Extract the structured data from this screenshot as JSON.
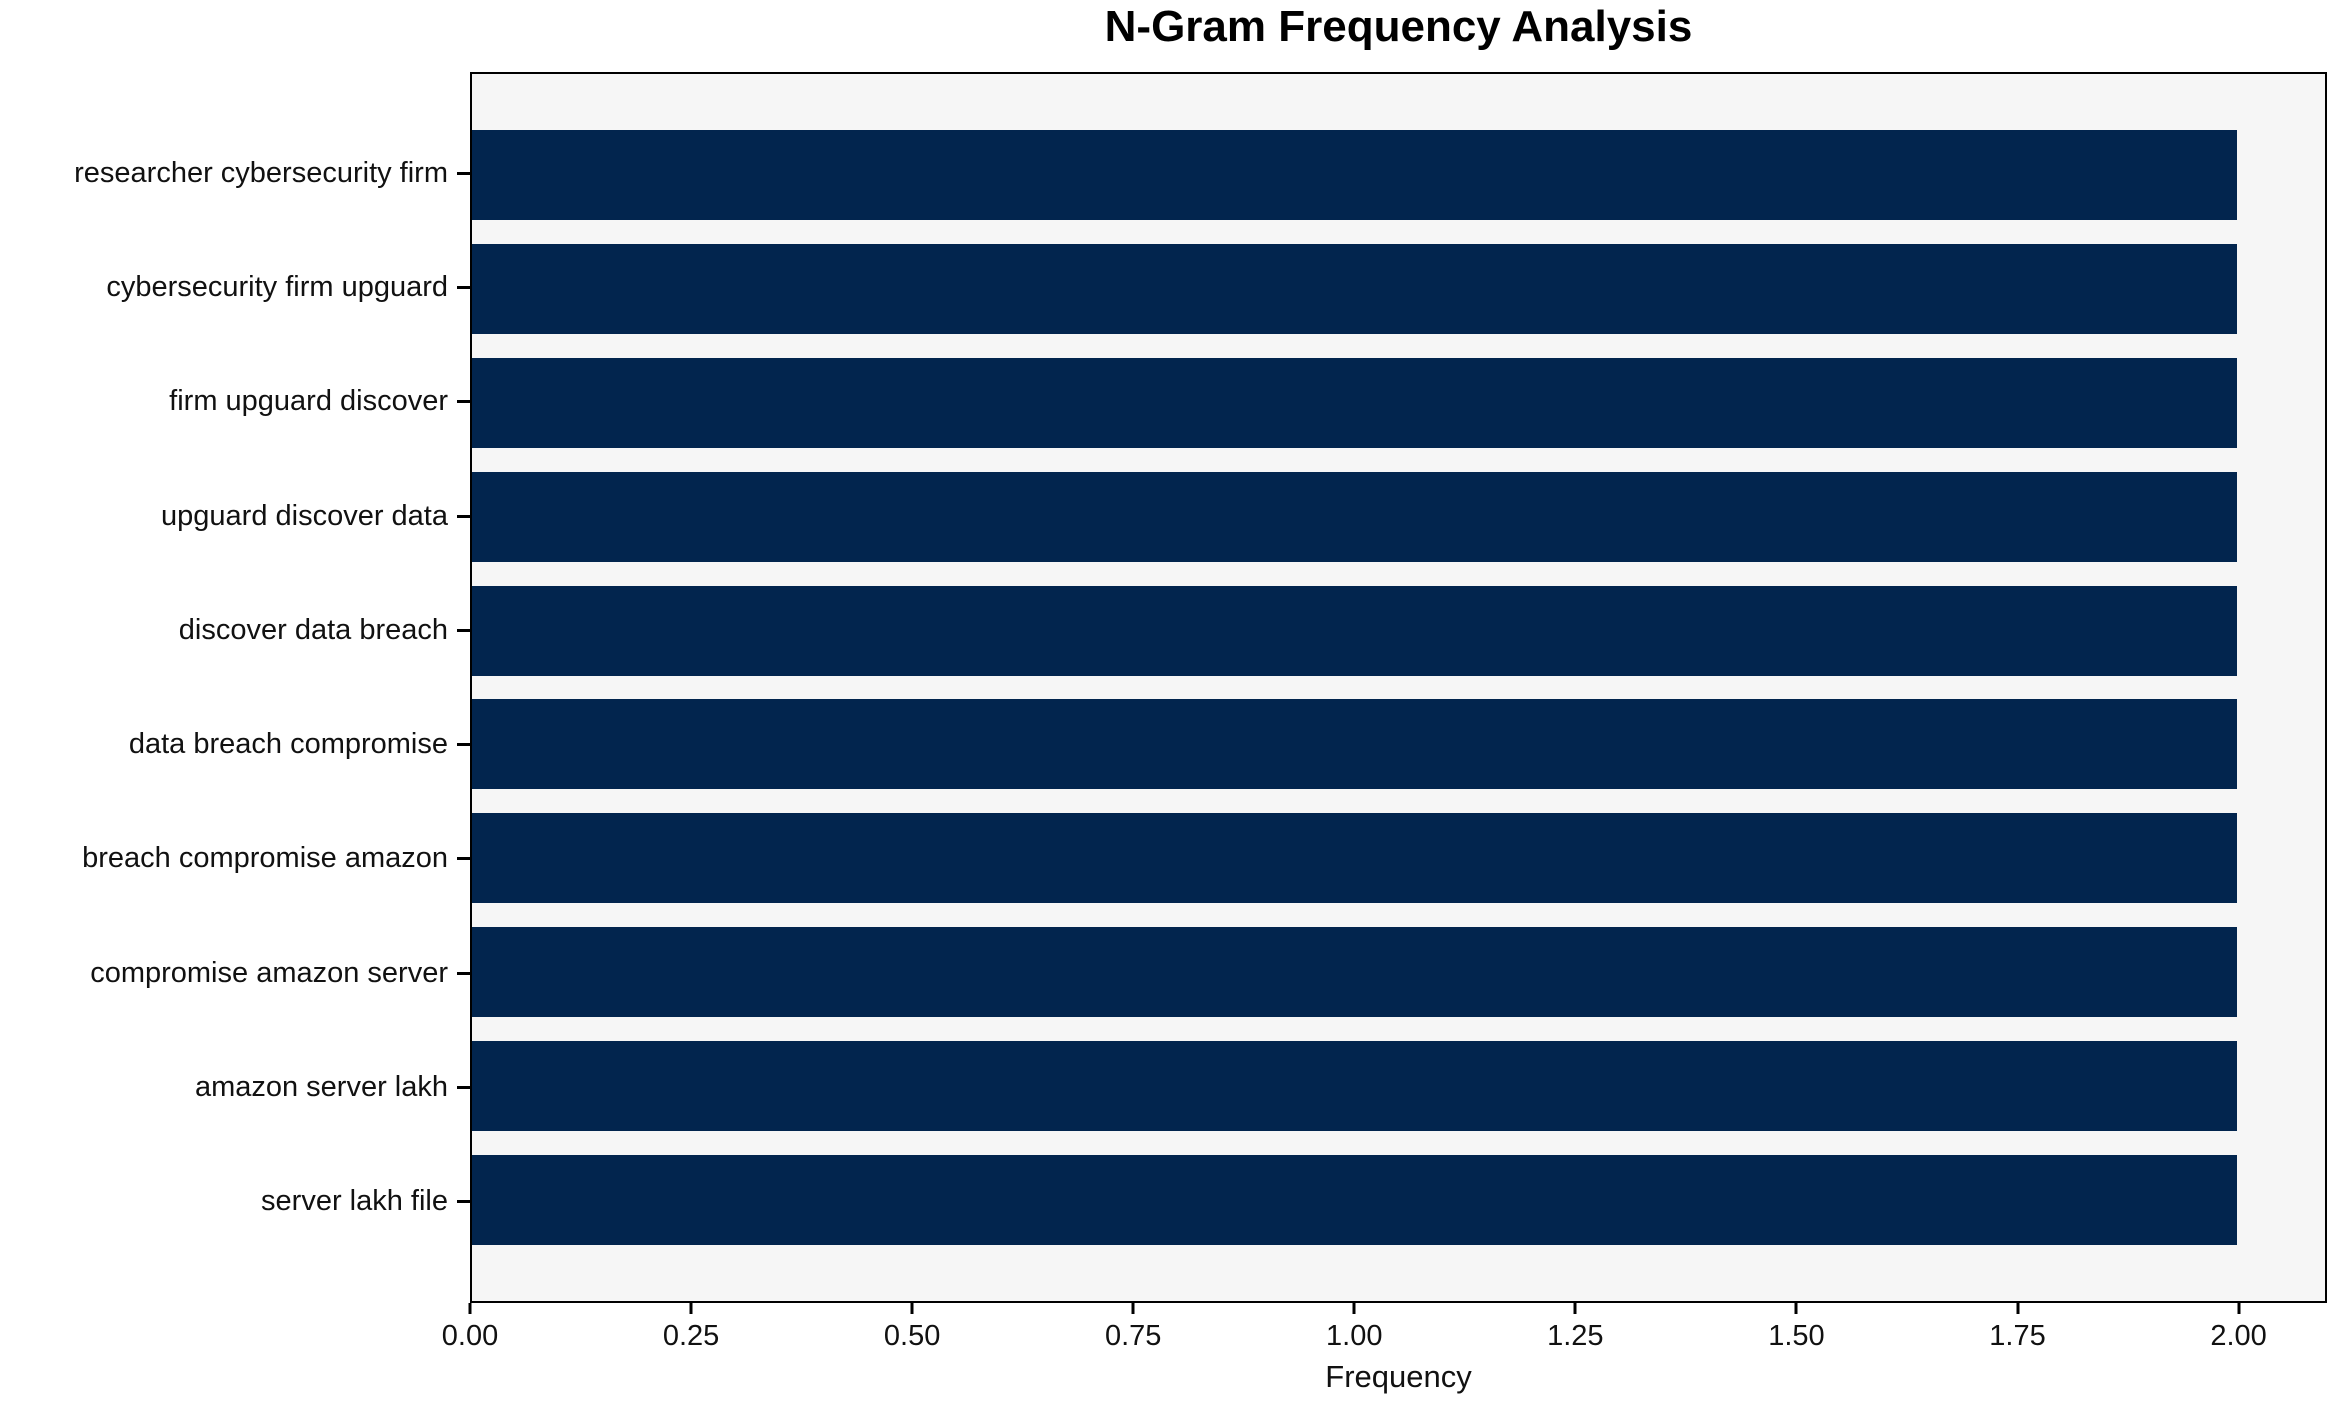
{
  "title": "N-Gram Frequency Analysis",
  "chart_data": {
    "type": "bar",
    "orientation": "horizontal",
    "title": "N-Gram Frequency Analysis",
    "xlabel": "Frequency",
    "ylabel": "",
    "categories": [
      "researcher cybersecurity firm",
      "cybersecurity firm upguard",
      "firm upguard discover",
      "upguard discover data",
      "discover data breach",
      "data breach compromise",
      "breach compromise amazon",
      "compromise amazon server",
      "amazon server lakh",
      "server lakh file"
    ],
    "values": [
      2,
      2,
      2,
      2,
      2,
      2,
      2,
      2,
      2,
      2
    ],
    "xlim": [
      0,
      2.1
    ],
    "xticks": [
      0.0,
      0.25,
      0.5,
      0.75,
      1.0,
      1.25,
      1.5,
      1.75,
      2.0
    ],
    "xtick_labels": [
      "0.00",
      "0.25",
      "0.50",
      "0.75",
      "1.00",
      "1.25",
      "1.50",
      "1.75",
      "2.00"
    ],
    "grid": false,
    "legend_position": "none",
    "bar_color": "#02254e",
    "plot_background": "#f6f6f6",
    "figure_background": "#ffffff",
    "spine_color": "#000000"
  }
}
